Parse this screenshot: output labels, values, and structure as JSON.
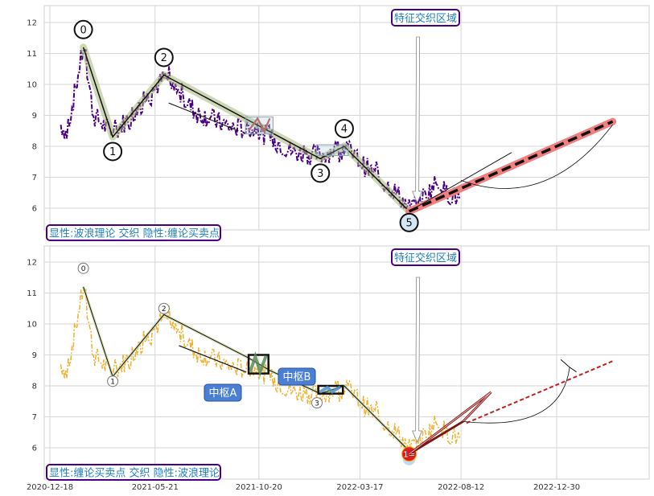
{
  "chart_data": [
    {
      "type": "line",
      "title": "",
      "xlabel": "",
      "ylabel": "",
      "ylim": [
        5.2,
        12.5
      ],
      "yticks": [
        6,
        7,
        8,
        9,
        10,
        11,
        12
      ],
      "grid": true,
      "box_label": "特征交织区域",
      "caption": "显性:波浪理论 交织 隐性:缠论买卖点",
      "price_color": "#4b0082",
      "wave_points": [
        {
          "label": "0",
          "date": "2021-02-05",
          "value": 11.2
        },
        {
          "label": "1",
          "date": "2021-03-20",
          "value": 8.3
        },
        {
          "label": "2",
          "date": "2021-06-03",
          "value": 10.3
        },
        {
          "label": "3",
          "date": "2022-01-18",
          "value": 7.6
        },
        {
          "label": "4",
          "date": "2022-02-22",
          "value": 8.0
        },
        {
          "label": "5",
          "date": "2022-05-28",
          "value": 5.9
        }
      ],
      "projection": [
        {
          "date": "2022-05-28",
          "value": 5.9
        },
        {
          "date": "2023-03-22",
          "value": 8.8
        }
      ]
    },
    {
      "type": "line",
      "title": "",
      "xlabel": "",
      "ylabel": "",
      "ylim": [
        5.2,
        12.5
      ],
      "yticks": [
        6,
        7,
        8,
        9,
        10,
        11,
        12
      ],
      "grid": true,
      "box_label": "特征交织区域",
      "caption": "显性:缠论买卖点 交织 隐性:波浪理论",
      "price_color": "#f0b030",
      "zhongshu": [
        {
          "label": "中枢A",
          "start": "2021-10-05",
          "end": "2021-11-03",
          "low": 8.4,
          "high": 9.0
        },
        {
          "label": "中枢B",
          "start": "2022-01-15",
          "end": "2022-02-20",
          "low": 7.75,
          "high": 8.0
        }
      ],
      "pivot_labels": [
        {
          "label": "0",
          "date": "2021-02-05",
          "value": 11.8
        },
        {
          "label": "1",
          "date": "2021-03-20",
          "value": 8.15
        },
        {
          "label": "2",
          "date": "2021-06-03",
          "value": 10.5
        },
        {
          "label": "3",
          "date": "2022-01-13",
          "value": 7.45
        }
      ],
      "buy_point": {
        "label": "1=",
        "date": "2022-05-28",
        "value": 5.8
      },
      "projection": [
        {
          "date": "2022-08-20",
          "value": 6.8
        },
        {
          "date": "2023-03-22",
          "value": 8.8
        }
      ]
    }
  ],
  "x_tick_labels": [
    "2020-12-18",
    "2021-05-21",
    "2021-10-20",
    "2022-03-17",
    "2022-08-12",
    "2022-12-30"
  ]
}
